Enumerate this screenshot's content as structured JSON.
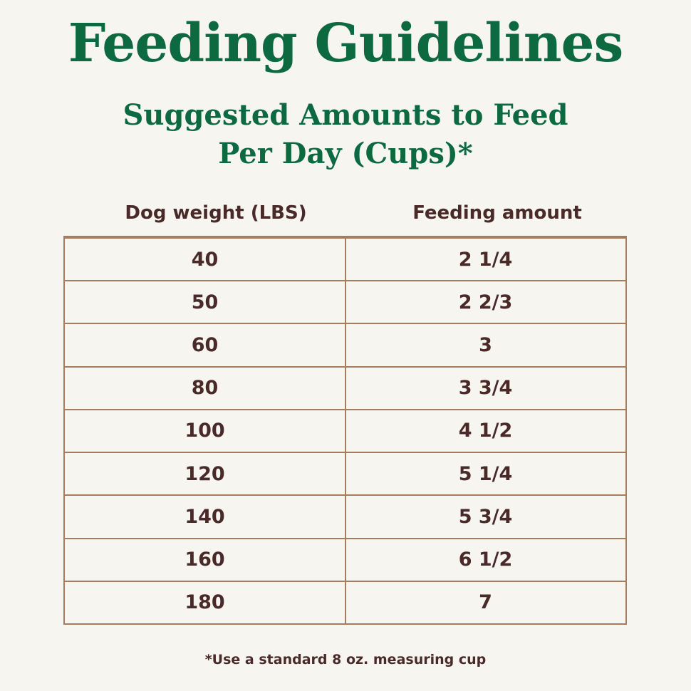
{
  "header": {
    "title": "Feeding Guidelines",
    "subtitle": [
      "Suggested Amounts to Feed",
      "Per Day (Cups)*"
    ]
  },
  "table": {
    "columns": [
      "Dog weight (LBS)",
      "Feeding amount"
    ],
    "rows": [
      [
        "40",
        "2 1/4"
      ],
      [
        "50",
        "2 2/3"
      ],
      [
        "60",
        "3"
      ],
      [
        "80",
        "3 3/4"
      ],
      [
        "100",
        "4 1/2"
      ],
      [
        "120",
        "5 1/4"
      ],
      [
        "140",
        "5 3/4"
      ],
      [
        "160",
        "6 1/2"
      ],
      [
        "180",
        "7"
      ]
    ]
  },
  "footnote": "*Use a standard 8 oz. measuring cup"
}
